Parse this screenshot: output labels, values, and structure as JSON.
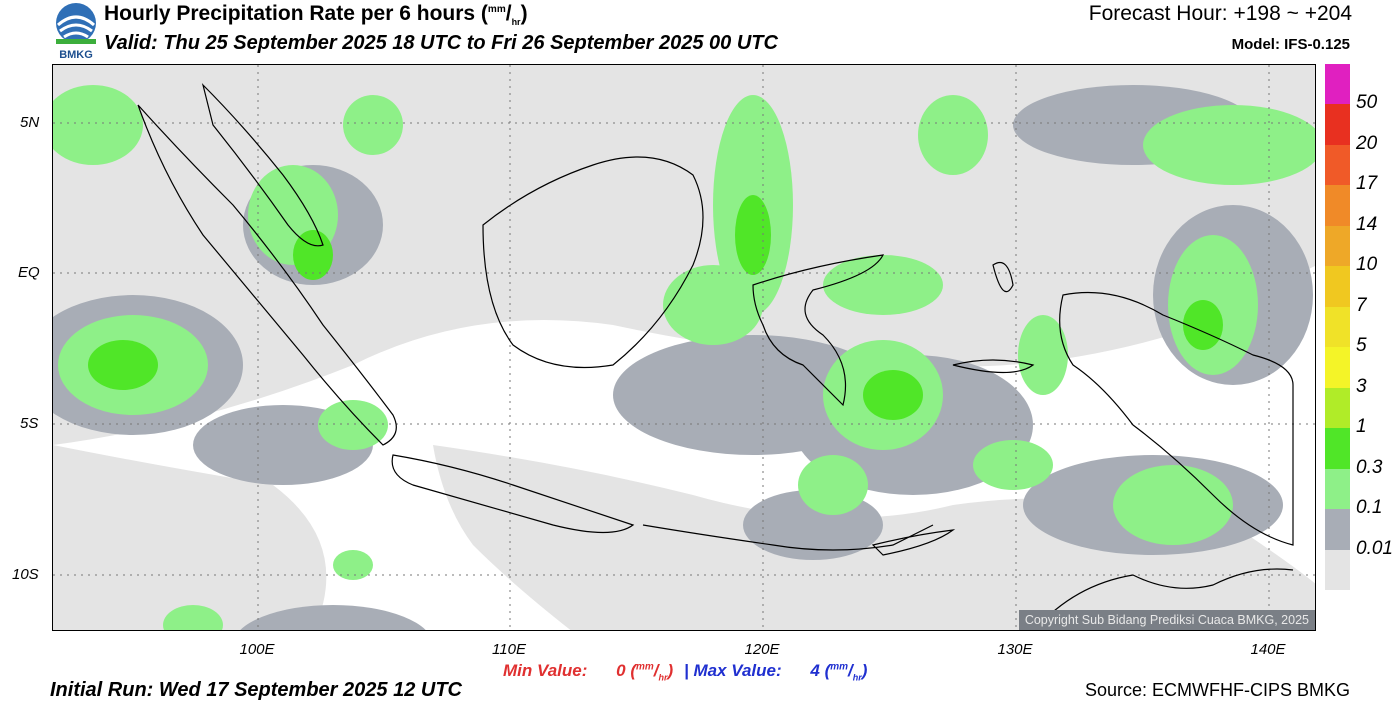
{
  "logo": {
    "text": "BMKG"
  },
  "header": {
    "title": "Hourly Precipitation Rate per 6 hours",
    "title_unit_num": "mm",
    "title_unit_den": "hr",
    "subtitle": "Valid: Thu 25 September 2025 18 UTC to Fri 26 September 2025 00 UTC",
    "forecast_hour": "Forecast Hour: +198 ~ +204",
    "model": "Model: IFS-0.125"
  },
  "map": {
    "lat_labels": [
      "5N",
      "EQ",
      "5S",
      "10S"
    ],
    "lon_labels": [
      "100E",
      "110E",
      "120E",
      "130E",
      "140E"
    ],
    "copyright": "Copyright Sub Bidang Prediksi Cuaca BMKG, 2025"
  },
  "colorbar": {
    "levels": [
      "50",
      "20",
      "17",
      "14",
      "10",
      "7",
      "5",
      "3",
      "1",
      "0.3",
      "0.1",
      "0.01"
    ],
    "colors": [
      "#e020c0",
      "#e83020",
      "#f05a28",
      "#f08a28",
      "#eea828",
      "#f0c820",
      "#f0e228",
      "#f4f428",
      "#b0ec28",
      "#50e628",
      "#8ef088",
      "#a8adb6",
      "#e4e4e4"
    ]
  },
  "stats": {
    "min_label": "Min Value:",
    "min_value": "0",
    "max_label": "Max Value:",
    "max_value": "4",
    "unit_num": "mm",
    "unit_den": "hr",
    "separator": "|"
  },
  "footer": {
    "initial_run": "Initial Run: Wed 17 September 2025 12 UTC",
    "source": "Source: ECMWFHF-CIPS BMKG"
  },
  "colors": {
    "light_gray": "#e4e4e4",
    "mid_gray": "#a8adb6",
    "light_green": "#8ef088",
    "bright_green": "#50e628",
    "min_red": "#e03030",
    "max_blue": "#2030d0"
  }
}
